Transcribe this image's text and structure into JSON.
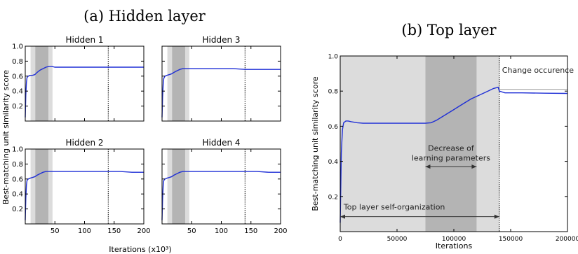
{
  "captions": {
    "left": "(a) Hidden layer",
    "right": "(b) Top layer"
  },
  "colors": {
    "series": "#1f2fd6",
    "shade_light": "#dcdcdc",
    "shade_dark": "#b4b4b4",
    "frame": "#000000"
  },
  "chart_data": [
    {
      "type": "line",
      "title": "Hidden 1",
      "xlim": [
        0,
        200
      ],
      "ylim": [
        0,
        1.0
      ],
      "xticks": [
        50,
        100,
        150,
        200
      ],
      "xtick_labels": [
        "50",
        "100",
        "150",
        "200"
      ],
      "yticks": [
        0.2,
        0.4,
        0.6,
        0.8,
        1.0
      ],
      "ytick_labels": [
        "0.2",
        "0.4",
        "0.6",
        "0.8",
        "1.0"
      ],
      "show_xtick_labels": false,
      "show_ytick_labels": true,
      "shaded_regions": [
        {
          "from": 9,
          "to": 46,
          "shade": "light"
        },
        {
          "from": 17,
          "to": 39,
          "shade": "dark"
        }
      ],
      "vline": 140,
      "series": [
        {
          "x": [
            0,
            1,
            2,
            3,
            5,
            8,
            12,
            16,
            20,
            25,
            30,
            35,
            40,
            45,
            50,
            60,
            80,
            100,
            120,
            140,
            160,
            180,
            200
          ],
          "y": [
            0.05,
            0.35,
            0.52,
            0.58,
            0.6,
            0.61,
            0.61,
            0.62,
            0.65,
            0.68,
            0.7,
            0.72,
            0.73,
            0.73,
            0.72,
            0.72,
            0.72,
            0.72,
            0.72,
            0.72,
            0.72,
            0.72,
            0.72
          ]
        }
      ]
    },
    {
      "type": "line",
      "title": "Hidden 3",
      "xlim": [
        0,
        200
      ],
      "ylim": [
        0,
        1.0
      ],
      "xticks": [
        50,
        100,
        150,
        200
      ],
      "xtick_labels": [
        "50",
        "100",
        "150",
        "200"
      ],
      "yticks": [
        0.2,
        0.4,
        0.6,
        0.8,
        1.0
      ],
      "ytick_labels": [
        "0.2",
        "0.4",
        "0.6",
        "0.8",
        "1.0"
      ],
      "show_xtick_labels": false,
      "show_ytick_labels": false,
      "shaded_regions": [
        {
          "from": 9,
          "to": 46,
          "shade": "light"
        },
        {
          "from": 17,
          "to": 39,
          "shade": "dark"
        }
      ],
      "vline": 140,
      "series": [
        {
          "x": [
            0,
            1,
            2,
            3,
            5,
            8,
            12,
            16,
            20,
            25,
            30,
            35,
            40,
            45,
            50,
            60,
            80,
            100,
            120,
            140,
            160,
            180,
            200
          ],
          "y": [
            0.05,
            0.33,
            0.5,
            0.57,
            0.6,
            0.61,
            0.62,
            0.63,
            0.65,
            0.67,
            0.69,
            0.7,
            0.7,
            0.7,
            0.7,
            0.7,
            0.7,
            0.7,
            0.7,
            0.69,
            0.69,
            0.69,
            0.69
          ]
        }
      ]
    },
    {
      "type": "line",
      "title": "Hidden 2",
      "xlim": [
        0,
        200
      ],
      "ylim": [
        0,
        1.0
      ],
      "xticks": [
        50,
        100,
        150,
        200
      ],
      "xtick_labels": [
        "50",
        "100",
        "150",
        "200"
      ],
      "yticks": [
        0.2,
        0.4,
        0.6,
        0.8,
        1.0
      ],
      "ytick_labels": [
        "0.2",
        "0.4",
        "0.6",
        "0.8",
        "1.0"
      ],
      "show_xtick_labels": true,
      "show_ytick_labels": true,
      "shaded_regions": [
        {
          "from": 9,
          "to": 46,
          "shade": "light"
        },
        {
          "from": 17,
          "to": 39,
          "shade": "dark"
        }
      ],
      "vline": 140,
      "series": [
        {
          "x": [
            0,
            1,
            2,
            3,
            5,
            8,
            12,
            16,
            20,
            25,
            30,
            35,
            40,
            45,
            50,
            60,
            80,
            100,
            120,
            140,
            160,
            180,
            200
          ],
          "y": [
            0.05,
            0.34,
            0.52,
            0.58,
            0.6,
            0.61,
            0.62,
            0.63,
            0.65,
            0.67,
            0.69,
            0.7,
            0.7,
            0.7,
            0.7,
            0.7,
            0.7,
            0.7,
            0.7,
            0.7,
            0.7,
            0.69,
            0.69
          ]
        }
      ]
    },
    {
      "type": "line",
      "title": "Hidden 4",
      "xlim": [
        0,
        200
      ],
      "ylim": [
        0,
        1.0
      ],
      "xticks": [
        50,
        100,
        150,
        200
      ],
      "xtick_labels": [
        "50",
        "100",
        "150",
        "200"
      ],
      "yticks": [
        0.2,
        0.4,
        0.6,
        0.8,
        1.0
      ],
      "ytick_labels": [
        "0.2",
        "0.4",
        "0.6",
        "0.8",
        "1.0"
      ],
      "show_xtick_labels": true,
      "show_ytick_labels": false,
      "shaded_regions": [
        {
          "from": 9,
          "to": 46,
          "shade": "light"
        },
        {
          "from": 17,
          "to": 39,
          "shade": "dark"
        }
      ],
      "vline": 140,
      "series": [
        {
          "x": [
            0,
            1,
            2,
            3,
            5,
            8,
            12,
            16,
            20,
            25,
            30,
            35,
            40,
            45,
            50,
            60,
            80,
            100,
            120,
            140,
            160,
            180,
            200
          ],
          "y": [
            0.05,
            0.34,
            0.52,
            0.58,
            0.6,
            0.61,
            0.62,
            0.63,
            0.65,
            0.67,
            0.69,
            0.7,
            0.7,
            0.7,
            0.7,
            0.7,
            0.7,
            0.7,
            0.7,
            0.7,
            0.7,
            0.69,
            0.69
          ]
        }
      ]
    },
    {
      "type": "line",
      "title": "",
      "xlim": [
        0,
        200000
      ],
      "ylim": [
        0,
        1.0
      ],
      "xticks": [
        0,
        50000,
        100000,
        150000,
        200000
      ],
      "xtick_labels": [
        "0",
        "50000",
        "100000",
        "150000",
        "200000"
      ],
      "yticks": [
        0.2,
        0.4,
        0.6,
        0.8,
        1.0
      ],
      "ytick_labels": [
        "0.2",
        "0.4",
        "0.6",
        "0.8",
        "1.0"
      ],
      "show_xtick_labels": true,
      "show_ytick_labels": true,
      "shaded_regions": [
        {
          "from": 0,
          "to": 140000,
          "shade": "light"
        },
        {
          "from": 75000,
          "to": 120000,
          "shade": "dark"
        }
      ],
      "vline": 140000,
      "xlabel": "Iterations",
      "ylabel": "Best-matching unit similarity score",
      "annotations": {
        "change": "Change occurence",
        "decrease_line1": "Decrease of",
        "decrease_line2": "learning parameters",
        "self_org": "Top layer self-organization"
      },
      "arrows": [
        {
          "name": "decrease",
          "from": 75000,
          "to": 120000,
          "y": 0.37
        },
        {
          "name": "self-org",
          "from": 0,
          "to": 140000,
          "y": 0.085
        }
      ],
      "change_line_y": 0.81,
      "series": [
        {
          "x": [
            0,
            1000,
            2000,
            3000,
            5000,
            7000,
            10000,
            15000,
            20000,
            30000,
            40000,
            50000,
            60000,
            70000,
            75000,
            80000,
            85000,
            90000,
            95000,
            100000,
            105000,
            110000,
            115000,
            120000,
            125000,
            130000,
            135000,
            139000,
            140000,
            145000,
            160000,
            180000,
            200000
          ],
          "y": [
            0.05,
            0.45,
            0.58,
            0.62,
            0.63,
            0.63,
            0.625,
            0.62,
            0.617,
            0.617,
            0.617,
            0.617,
            0.617,
            0.617,
            0.617,
            0.62,
            0.635,
            0.655,
            0.675,
            0.695,
            0.715,
            0.735,
            0.755,
            0.77,
            0.785,
            0.8,
            0.815,
            0.822,
            0.8,
            0.79,
            0.79,
            0.788,
            0.787
          ]
        }
      ]
    }
  ],
  "shared_labels": {
    "left_ylabel": "Best-matching unit similarity score",
    "left_xlabel": "Iterations (x10³)"
  }
}
